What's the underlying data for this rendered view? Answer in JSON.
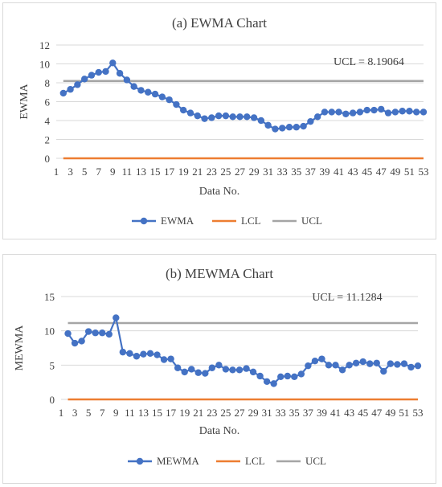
{
  "colors": {
    "ewma": "#4472c4",
    "lcl": "#ed7d31",
    "ucl": "#a5a5a5",
    "grid": "#d9d9d9",
    "text": "#404040"
  },
  "chart_data": [
    {
      "type": "line",
      "title": "(a) EWMA Chart",
      "xlabel": "Data No.",
      "ylabel": "EWMA",
      "ylim": [
        0,
        12
      ],
      "yticks": [
        "0",
        "2",
        "4",
        "6",
        "8",
        "10",
        "12"
      ],
      "xticks": [
        "1",
        "3",
        "5",
        "7",
        "9",
        "11",
        "13",
        "15",
        "17",
        "19",
        "21",
        "23",
        "25",
        "27",
        "29",
        "31",
        "33",
        "35",
        "37",
        "39",
        "41",
        "43",
        "45",
        "47",
        "49",
        "51",
        "53"
      ],
      "grid": true,
      "legend_position": "bottom",
      "annotation": "UCL = 8.19064",
      "x": [
        2,
        3,
        4,
        5,
        6,
        7,
        8,
        9,
        10,
        11,
        12,
        13,
        14,
        15,
        16,
        17,
        18,
        19,
        20,
        21,
        22,
        23,
        24,
        25,
        26,
        27,
        28,
        29,
        30,
        31,
        32,
        33,
        34,
        35,
        36,
        37,
        38,
        39,
        40,
        41,
        42,
        43,
        44,
        45,
        46,
        47,
        48,
        49,
        50,
        51,
        52,
        53
      ],
      "series": [
        {
          "name": "EWMA",
          "values": [
            6.9,
            7.3,
            7.8,
            8.4,
            8.8,
            9.1,
            9.2,
            10.1,
            9.0,
            8.3,
            7.6,
            7.2,
            7.0,
            6.8,
            6.5,
            6.2,
            5.7,
            5.1,
            4.8,
            4.5,
            4.2,
            4.3,
            4.5,
            4.5,
            4.4,
            4.4,
            4.4,
            4.3,
            4.0,
            3.5,
            3.1,
            3.2,
            3.3,
            3.3,
            3.4,
            3.9,
            4.4,
            4.9,
            4.9,
            4.9,
            4.7,
            4.8,
            4.9,
            5.1,
            5.1,
            5.2,
            4.8,
            4.9,
            5.0,
            5.0,
            4.9,
            4.9
          ]
        },
        {
          "name": "LCL",
          "values": [
            0,
            0,
            0,
            0,
            0,
            0,
            0,
            0,
            0,
            0,
            0,
            0,
            0,
            0,
            0,
            0,
            0,
            0,
            0,
            0,
            0,
            0,
            0,
            0,
            0,
            0,
            0,
            0,
            0,
            0,
            0,
            0,
            0,
            0,
            0,
            0,
            0,
            0,
            0,
            0,
            0,
            0,
            0,
            0,
            0,
            0,
            0,
            0,
            0,
            0,
            0,
            0
          ]
        },
        {
          "name": "UCL",
          "values": [
            8.19,
            8.19,
            8.19,
            8.19,
            8.19,
            8.19,
            8.19,
            8.19,
            8.19,
            8.19,
            8.19,
            8.19,
            8.19,
            8.19,
            8.19,
            8.19,
            8.19,
            8.19,
            8.19,
            8.19,
            8.19,
            8.19,
            8.19,
            8.19,
            8.19,
            8.19,
            8.19,
            8.19,
            8.19,
            8.19,
            8.19,
            8.19,
            8.19,
            8.19,
            8.19,
            8.19,
            8.19,
            8.19,
            8.19,
            8.19,
            8.19,
            8.19,
            8.19,
            8.19,
            8.19,
            8.19,
            8.19,
            8.19,
            8.19,
            8.19,
            8.19,
            8.19
          ]
        }
      ]
    },
    {
      "type": "line",
      "title": "(b) MEWMA Chart",
      "xlabel": "Data No.",
      "ylabel": "MEWMA",
      "ylim": [
        0,
        15
      ],
      "yticks": [
        "0",
        "5",
        "10",
        "15"
      ],
      "xticks": [
        "1",
        "3",
        "5",
        "7",
        "9",
        "11",
        "13",
        "15",
        "17",
        "19",
        "21",
        "23",
        "25",
        "27",
        "29",
        "31",
        "33",
        "35",
        "37",
        "39",
        "41",
        "43",
        "45",
        "47",
        "49",
        "51",
        "53"
      ],
      "grid": true,
      "legend_position": "bottom",
      "annotation": "UCL = 11.1284",
      "x": [
        2,
        3,
        4,
        5,
        6,
        7,
        8,
        9,
        10,
        11,
        12,
        13,
        14,
        15,
        16,
        17,
        18,
        19,
        20,
        21,
        22,
        23,
        24,
        25,
        26,
        27,
        28,
        29,
        30,
        31,
        32,
        33,
        34,
        35,
        36,
        37,
        38,
        39,
        40,
        41,
        42,
        43,
        44,
        45,
        46,
        47,
        48,
        49,
        50,
        51,
        52,
        53
      ],
      "series": [
        {
          "name": "MEWMA",
          "values": [
            9.6,
            8.2,
            8.5,
            9.9,
            9.7,
            9.7,
            9.5,
            11.9,
            6.9,
            6.7,
            6.3,
            6.6,
            6.7,
            6.5,
            5.8,
            5.9,
            4.6,
            4.0,
            4.4,
            3.9,
            3.8,
            4.6,
            5.0,
            4.4,
            4.3,
            4.3,
            4.5,
            4.0,
            3.4,
            2.6,
            2.3,
            3.3,
            3.4,
            3.3,
            3.7,
            4.9,
            5.6,
            5.9,
            5.0,
            5.0,
            4.3,
            5.0,
            5.3,
            5.5,
            5.2,
            5.3,
            4.1,
            5.2,
            5.1,
            5.2,
            4.7,
            4.9
          ]
        },
        {
          "name": "LCL",
          "values": [
            0,
            0,
            0,
            0,
            0,
            0,
            0,
            0,
            0,
            0,
            0,
            0,
            0,
            0,
            0,
            0,
            0,
            0,
            0,
            0,
            0,
            0,
            0,
            0,
            0,
            0,
            0,
            0,
            0,
            0,
            0,
            0,
            0,
            0,
            0,
            0,
            0,
            0,
            0,
            0,
            0,
            0,
            0,
            0,
            0,
            0,
            0,
            0,
            0,
            0,
            0,
            0
          ]
        },
        {
          "name": "UCL",
          "values": [
            11.13,
            11.13,
            11.13,
            11.13,
            11.13,
            11.13,
            11.13,
            11.13,
            11.13,
            11.13,
            11.13,
            11.13,
            11.13,
            11.13,
            11.13,
            11.13,
            11.13,
            11.13,
            11.13,
            11.13,
            11.13,
            11.13,
            11.13,
            11.13,
            11.13,
            11.13,
            11.13,
            11.13,
            11.13,
            11.13,
            11.13,
            11.13,
            11.13,
            11.13,
            11.13,
            11.13,
            11.13,
            11.13,
            11.13,
            11.13,
            11.13,
            11.13,
            11.13,
            11.13,
            11.13,
            11.13,
            11.13,
            11.13,
            11.13,
            11.13,
            11.13,
            11.13
          ]
        }
      ]
    }
  ]
}
